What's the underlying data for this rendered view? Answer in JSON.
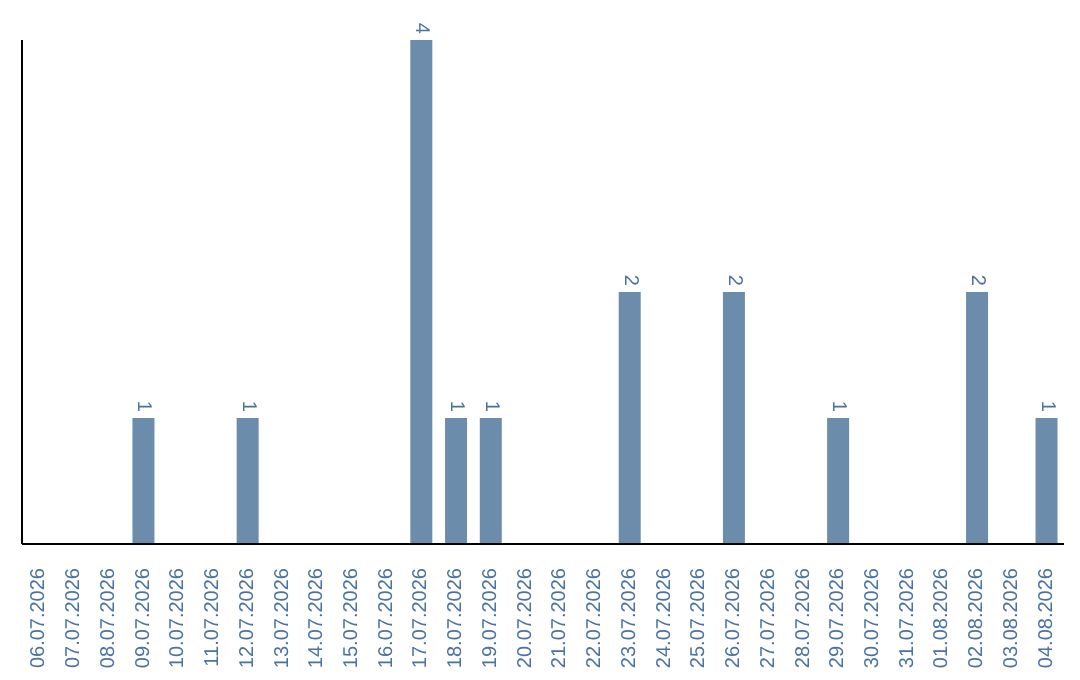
{
  "chart_data": {
    "type": "bar",
    "categories": [
      "06.07.2026",
      "07.07.2026",
      "08.07.2026",
      "09.07.2026",
      "10.07.2026",
      "11.07.2026",
      "12.07.2026",
      "13.07.2026",
      "14.07.2026",
      "15.07.2026",
      "16.07.2026",
      "17.07.2026",
      "18.07.2026",
      "19.07.2026",
      "20.07.2026",
      "21.07.2026",
      "22.07.2026",
      "23.07.2026",
      "24.07.2026",
      "25.07.2026",
      "26.07.2026",
      "27.07.2026",
      "28.07.2026",
      "29.07.2026",
      "30.07.2026",
      "31.07.2026",
      "01.08.2026",
      "02.08.2026",
      "03.08.2026",
      "04.08.2026"
    ],
    "values": [
      0,
      0,
      0,
      1,
      0,
      0,
      1,
      0,
      0,
      0,
      0,
      4,
      1,
      1,
      0,
      0,
      0,
      2,
      0,
      0,
      2,
      0,
      0,
      1,
      0,
      0,
      0,
      2,
      0,
      1
    ],
    "value_labels": [
      null,
      null,
      null,
      "1",
      null,
      null,
      "1",
      null,
      null,
      null,
      null,
      "4",
      "1",
      "1",
      null,
      null,
      null,
      "2",
      null,
      null,
      "2",
      null,
      null,
      "1",
      null,
      null,
      null,
      "2",
      null,
      "1"
    ],
    "color": "#6b8cab",
    "grid": false,
    "legend": false
  }
}
